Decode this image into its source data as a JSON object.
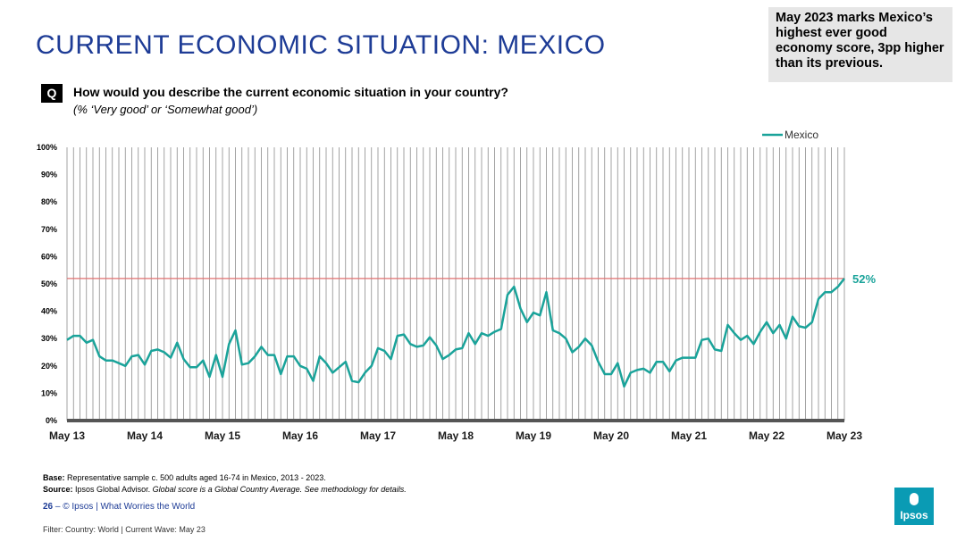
{
  "title": "CURRENT ECONOMIC SITUATION: MEXICO",
  "callout": "May 2023 marks Mexico’s highest ever good economy score, 3pp higher than its previous.",
  "question": {
    "badge": "Q",
    "text": "How would you describe the current economic situation in your country?",
    "sub": "(% ‘Very good’ or ‘Somewhat good’)"
  },
  "chart_data": {
    "type": "line",
    "x_tick_labels": [
      "May 13",
      "May 14",
      "May 15",
      "May 16",
      "May 17",
      "May 18",
      "May 19",
      "May 20",
      "May 21",
      "May 22",
      "May 23"
    ],
    "y_tick_labels": [
      "0%",
      "10%",
      "20%",
      "30%",
      "40%",
      "50%",
      "60%",
      "70%",
      "80%",
      "90%",
      "100%"
    ],
    "ylim": [
      0,
      100
    ],
    "grid": "vertical",
    "legend_position": "top-right",
    "reference_line": 52,
    "end_label": "52%",
    "series": [
      {
        "name": "Mexico",
        "color": "#1aa39a",
        "values": [
          29.5,
          31,
          31,
          28.5,
          29.5,
          23.5,
          22,
          22,
          21,
          20,
          23.5,
          24,
          20.5,
          25.5,
          26,
          25,
          23,
          28.5,
          22.5,
          19.5,
          19.5,
          22,
          16,
          24,
          16,
          28,
          33,
          20.5,
          21,
          23.5,
          27,
          24,
          24,
          17,
          23.5,
          23.5,
          20,
          19,
          14.5,
          23.5,
          21,
          17.5,
          19.5,
          21.5,
          14.5,
          14,
          17.5,
          20,
          26.5,
          25.5,
          22.5,
          31,
          31.5,
          28,
          27,
          27.5,
          30.5,
          27.5,
          22.5,
          24,
          26,
          26.5,
          32,
          28,
          32,
          31,
          32.5,
          33.5,
          46,
          49,
          41,
          36,
          39.5,
          38.5,
          47,
          33,
          32,
          30,
          25,
          27,
          30,
          27.5,
          21.5,
          17,
          17,
          21,
          12.5,
          17.5,
          18.5,
          19,
          17.5,
          21.5,
          21.5,
          18,
          22,
          23,
          23,
          23,
          29.5,
          30,
          26,
          25.5,
          35,
          32,
          29.5,
          31,
          28,
          32.5,
          36,
          32,
          35,
          30,
          38,
          34.5,
          34,
          36,
          44.5,
          47,
          47,
          49,
          52
        ]
      }
    ]
  },
  "footnotes": {
    "base_label": "Base:",
    "base_text": "Representative sample c. 500 adults aged 16-74 in Mexico, 2013 - 2023.",
    "source_label": "Source:",
    "source_text": "Ipsos Global Advisor.",
    "source_italic": "Global score is a Global Country Average. See methodology for details."
  },
  "footer": {
    "page": "26",
    "separator": "–",
    "text": "© Ipsos | What Worries the World"
  },
  "filter": "Filter: Country: World | Current Wave: May 23",
  "logo": "Ipsos"
}
